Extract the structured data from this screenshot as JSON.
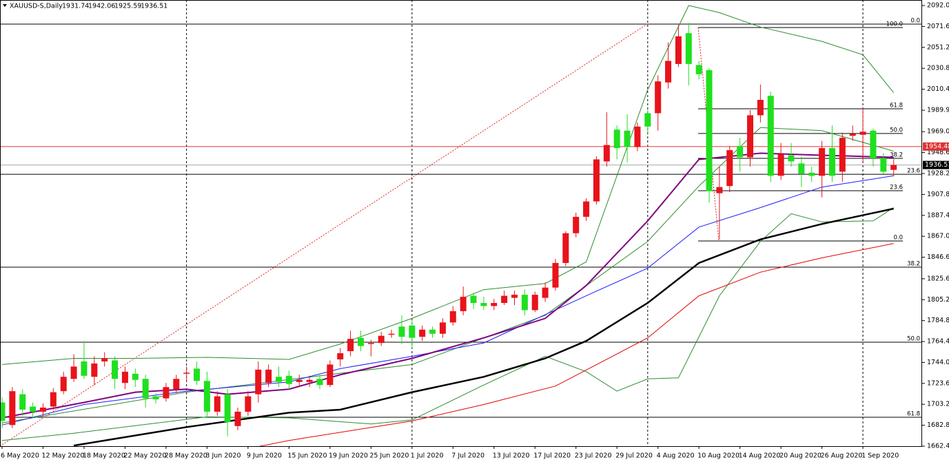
{
  "chart_data": {
    "type": "candlestick",
    "title": "XAUUSD-S,Daily",
    "header_values": [
      1931.74,
      1942.06,
      1925.59,
      1936.51
    ],
    "bull_color": "#e8131b",
    "bear_color": "#1fe01f",
    "categories": [
      "6 May 2020",
      null,
      null,
      null,
      "12 May 2020",
      null,
      null,
      null,
      "18 May 2020",
      null,
      null,
      null,
      "22 May 2020",
      null,
      null,
      null,
      "28 May 2020",
      null,
      null,
      null,
      "3 Jun 2020",
      null,
      null,
      null,
      "9 Jun 2020",
      null,
      null,
      null,
      "15 Jun 2020",
      null,
      null,
      null,
      "19 Jun 2020",
      null,
      null,
      null,
      "25 Jun 2020",
      null,
      null,
      null,
      "1 Jul 2020",
      null,
      null,
      null,
      "7 Jul 2020",
      null,
      null,
      null,
      "13 Jul 2020",
      null,
      null,
      null,
      "17 Jul 2020",
      null,
      null,
      null,
      "23 Jul 2020",
      null,
      null,
      null,
      "29 Jul 2020",
      null,
      null,
      null,
      "4 Aug 2020",
      null,
      null,
      null,
      "10 Aug 2020",
      null,
      null,
      null,
      "14 Aug 2020",
      null,
      null,
      null,
      "20 Aug 2020",
      null,
      null,
      null,
      "26 Aug 2020",
      null,
      null,
      null,
      "1 Sep 2020",
      null,
      null,
      null
    ],
    "open": [
      1705,
      1683,
      1713,
      1701,
      1696,
      1701,
      1716,
      1728,
      1745,
      1730,
      1745,
      1746,
      1724,
      1733,
      1728,
      1711,
      1709,
      1718,
      1733,
      1738,
      1726,
      1696,
      1713,
      1682,
      1696,
      1713,
      1724,
      1730,
      1731,
      1725,
      1725,
      1728,
      1722,
      1747,
      1755,
      1768,
      1762,
      1763,
      1771,
      1779,
      1780,
      1769,
      1776,
      1772,
      1783,
      1794,
      1809,
      1802,
      1799,
      1802,
      1807,
      1810,
      1795,
      1807,
      1817,
      1841,
      1870,
      1886,
      1901,
      1940,
      1971,
      1970,
      1954,
      1987,
      1987,
      2017,
      2035,
      2065,
      2034,
      2029,
      1909,
      1916,
      1955,
      1944,
      1985,
      2004,
      1926,
      1946,
      1938,
      1929,
      1926,
      1953,
      1930,
      1965,
      1966,
      1970,
      1943,
      1931.74
    ],
    "high": [
      1710,
      1720,
      1718,
      1705,
      1704,
      1719,
      1735,
      1752,
      1765,
      1750,
      1754,
      1750,
      1740,
      1738,
      1732,
      1714,
      1724,
      1732,
      1740,
      1745,
      1735,
      1716,
      1718,
      1700,
      1716,
      1745,
      1742,
      1740,
      1736,
      1732,
      1731,
      1732,
      1746,
      1758,
      1775,
      1775,
      1766,
      1774,
      1776,
      1790,
      1785,
      1780,
      1779,
      1787,
      1799,
      1818,
      1812,
      1808,
      1806,
      1814,
      1814,
      1815,
      1813,
      1822,
      1845,
      1872,
      1890,
      1904,
      1945,
      1988,
      1975,
      1986,
      1978,
      1990,
      2024,
      2056,
      2073,
      2075,
      2038,
      2031,
      1935,
      1955,
      1963,
      1990,
      2015,
      2008,
      1958,
      1958,
      1945,
      1935,
      1960,
      1975,
      1968,
      1975,
      1992,
      1972,
      1948,
      1942.06
    ],
    "low": [
      1680,
      1680,
      1692,
      1690,
      1692,
      1698,
      1713,
      1725,
      1728,
      1722,
      1740,
      1718,
      1718,
      1720,
      1700,
      1704,
      1706,
      1714,
      1725,
      1722,
      1690,
      1692,
      1672,
      1678,
      1692,
      1705,
      1720,
      1720,
      1718,
      1720,
      1720,
      1718,
      1720,
      1740,
      1750,
      1755,
      1750,
      1760,
      1768,
      1762,
      1758,
      1765,
      1768,
      1768,
      1780,
      1790,
      1796,
      1795,
      1795,
      1800,
      1800,
      1790,
      1793,
      1803,
      1814,
      1838,
      1866,
      1882,
      1898,
      1935,
      1942,
      1939,
      1950,
      1968,
      1970,
      2011,
      2032,
      2014,
      2020,
      1900,
      1864,
      1910,
      1930,
      1935,
      1978,
      1920,
      1922,
      1935,
      1915,
      1920,
      1905,
      1920,
      1920,
      1960,
      1940,
      1935,
      1928,
      1925.59
    ],
    "close": [
      1687,
      1716,
      1698,
      1696,
      1700,
      1715,
      1730,
      1740,
      1731,
      1743,
      1748,
      1728,
      1735,
      1727,
      1709,
      1708,
      1720,
      1728,
      1734,
      1726,
      1696,
      1711,
      1686,
      1696,
      1711,
      1737,
      1737,
      1725,
      1723,
      1727,
      1727,
      1722,
      1742,
      1753,
      1767,
      1760,
      1763,
      1770,
      1772,
      1769,
      1768,
      1776,
      1772,
      1783,
      1794,
      1808,
      1802,
      1799,
      1802,
      1809,
      1810,
      1795,
      1810,
      1817,
      1841,
      1870,
      1886,
      1901,
      1942,
      1956,
      1953,
      1954,
      1974,
      1974,
      2018,
      2038,
      2062,
      2035,
      2025,
      1911,
      1915,
      1951,
      1944,
      1985,
      2000,
      1926,
      1947,
      1940,
      1928,
      1926,
      1953,
      1926,
      1963,
      1967,
      1969,
      1943,
      1930,
      1936.51
    ],
    "lines": [
      {
        "color": "#2e8b2e",
        "width": 1,
        "x": [
          0,
          7,
          13,
          20,
          28,
          33,
          40,
          47,
          53,
          57,
          63,
          67,
          70,
          74,
          80,
          84,
          87
        ],
        "values": [
          1742,
          1748,
          1748,
          1749,
          1747,
          1762,
          1787,
          1815,
          1821,
          1842,
          2010,
          2092,
          2085,
          2071,
          2057,
          2044,
          2007
        ]
      },
      {
        "color": "#2e8b2e",
        "width": 1,
        "x": [
          0,
          7,
          20,
          28,
          36,
          40,
          47,
          53,
          57,
          60,
          63,
          66,
          70,
          74,
          77,
          80,
          85,
          87
        ],
        "values": [
          1668,
          1675,
          1691,
          1690,
          1684,
          1688,
          1722,
          1750,
          1735,
          1716,
          1728,
          1729,
          1809,
          1862,
          1889,
          1881,
          1882,
          1895
        ]
      },
      {
        "color": "#2e8b2e",
        "width": 1,
        "x": [
          0,
          18,
          40,
          53,
          63,
          68,
          74,
          80,
          87
        ],
        "values": [
          1685,
          1715,
          1742,
          1790,
          1862,
          1916,
          1973,
          1970,
          1950
        ]
      },
      {
        "color": "#e00000",
        "width": 1,
        "x": [
          25,
          28,
          40,
          47,
          54,
          63,
          68,
          74,
          80,
          87
        ],
        "values": [
          1662,
          1668,
          1687,
          1703,
          1721,
          1768,
          1809,
          1832,
          1846,
          1860
        ]
      },
      {
        "color": "#000000",
        "width": 2.5,
        "x": [
          7,
          18,
          28,
          33,
          40,
          47,
          53,
          57,
          63,
          68,
          74,
          80,
          87
        ],
        "values": [
          1663,
          1681,
          1695,
          1698,
          1715,
          1730,
          1748,
          1765,
          1802,
          1841,
          1864,
          1879,
          1894
        ]
      },
      {
        "color": "#1a1aff",
        "width": 1,
        "x": [
          0,
          8,
          18,
          28,
          33,
          40,
          47,
          57,
          63,
          68,
          74,
          80,
          87
        ],
        "values": [
          1683,
          1703,
          1716,
          1725,
          1738,
          1750,
          1763,
          1809,
          1836,
          1876,
          1895,
          1915,
          1926
        ]
      },
      {
        "color": "#800080",
        "width": 2,
        "x": [
          0,
          8,
          13,
          18,
          22,
          28,
          33,
          40,
          47,
          53,
          57,
          63,
          68,
          74,
          80,
          87
        ],
        "values": [
          1690,
          1705,
          1715,
          1718,
          1713,
          1718,
          1732,
          1748,
          1768,
          1787,
          1819,
          1882,
          1942,
          1948,
          1946,
          1944
        ]
      }
    ],
    "price_lines": [
      {
        "value": 1954.48,
        "color": "#e03030"
      },
      {
        "value": 1936.51,
        "color": "#000000"
      }
    ],
    "separators": [
      18,
      40,
      63,
      84
    ],
    "fibo": [
      {
        "levels": [
          {
            "text": "0.0",
            "price": 2073.9
          },
          {
            "text": "23.6",
            "price": 1927.5
          },
          {
            "text": "38.2",
            "price": 1836.9
          },
          {
            "text": "50.0",
            "price": 1763.8
          },
          {
            "text": "61.8",
            "price": 1690.6
          }
        ]
      },
      {
        "levels": [
          {
            "text": "100.0",
            "price": 2070.5
          },
          {
            "text": "61.8",
            "price": 1991.3
          },
          {
            "text": "50.0",
            "price": 1967.2
          },
          {
            "text": "38.2",
            "price": 1943.0
          },
          {
            "text": "23.6",
            "price": 1911.4
          },
          {
            "text": "0.0",
            "price": 1862.4
          }
        ]
      }
    ],
    "ylim": [
      1662.4,
      2092.0
    ],
    "yticks": [
      {
        "value": 2092.0,
        "label": "2092.0"
      },
      {
        "value": 2071.6,
        "label": "2071.60"
      },
      {
        "value": 2051.2,
        "label": "2051.20"
      },
      {
        "value": 2030.8,
        "label": "2030.80"
      },
      {
        "value": 2010.4,
        "label": "2010.40"
      },
      {
        "value": 1989.9,
        "label": "1989.90"
      },
      {
        "value": 1969.0,
        "label": "1969.00"
      },
      {
        "value": 1948.6,
        "label": "1948.60"
      },
      {
        "value": 1928.2,
        "label": "1928.20"
      },
      {
        "value": 1907.8,
        "label": "1907.80"
      },
      {
        "value": 1887.4,
        "label": "1887.40"
      },
      {
        "value": 1867.0,
        "label": "1867.00"
      },
      {
        "value": 1846.6,
        "label": "1846.60"
      },
      {
        "value": 1825.6,
        "label": "1825.60"
      },
      {
        "value": 1805.2,
        "label": "1805.20"
      },
      {
        "value": 1784.8,
        "label": "1784.80"
      },
      {
        "value": 1764.4,
        "label": "1764.40"
      },
      {
        "value": 1744.0,
        "label": "1744.00"
      },
      {
        "value": 1723.6,
        "label": "1723.60"
      },
      {
        "value": 1703.2,
        "label": "1703.20"
      },
      {
        "value": 1682.8,
        "label": "1682.80"
      },
      {
        "value": 1662.4,
        "label": "1662.40"
      }
    ]
  }
}
